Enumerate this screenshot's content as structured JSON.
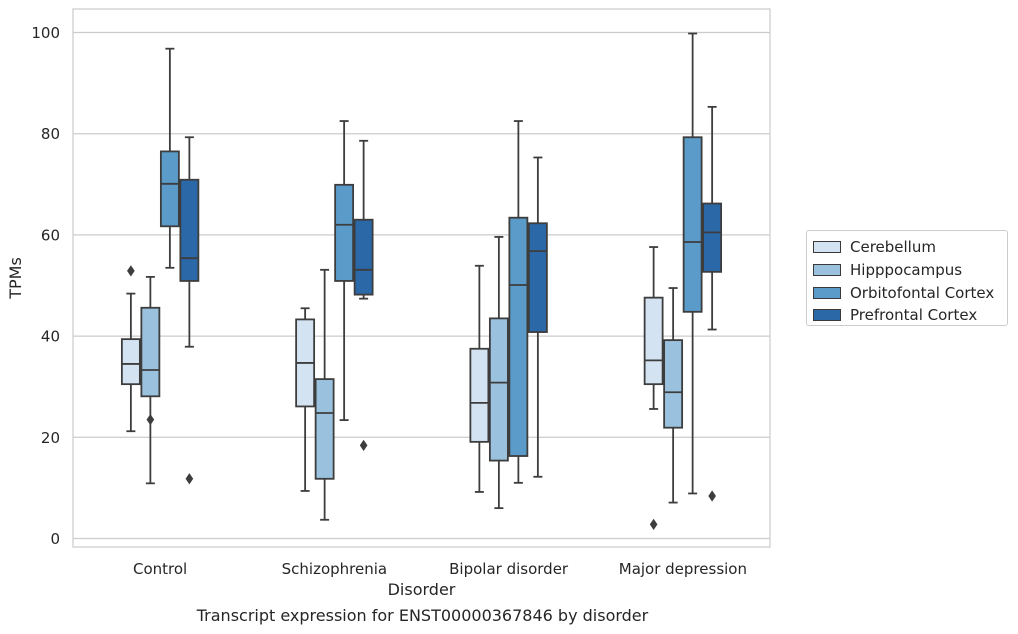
{
  "caption": "Transcript expression for ENST00000367846 by disorder",
  "chart_data": {
    "type": "box",
    "xlabel": "Disorder",
    "ylabel": "TPMs",
    "ylim": [
      -2,
      105
    ],
    "yticks": [
      0,
      20,
      40,
      60,
      80,
      100
    ],
    "grid": true,
    "legend_position": "right",
    "categories": [
      "Control",
      "Schizophrenia",
      "Bipolar disorder",
      "Major depression"
    ],
    "series": [
      {
        "name": "Cerebellum",
        "color": "#d4e3f2",
        "boxes": [
          {
            "whisker_low": 21.2,
            "q1": 30.5,
            "median": 34.5,
            "q3": 39.4,
            "whisker_high": 48.4,
            "outliers": [
              52.9
            ]
          },
          {
            "whisker_low": 9.4,
            "q1": 26.1,
            "median": 34.7,
            "q3": 43.3,
            "whisker_high": 45.5,
            "outliers": []
          },
          {
            "whisker_low": 9.2,
            "q1": 19.1,
            "median": 26.8,
            "q3": 37.5,
            "whisker_high": 53.9,
            "outliers": []
          },
          {
            "whisker_low": 25.6,
            "q1": 30.5,
            "median": 35.2,
            "q3": 47.6,
            "whisker_high": 57.6,
            "outliers": [
              2.8
            ]
          }
        ]
      },
      {
        "name": "Hipppocampus",
        "color": "#9ac2df",
        "boxes": [
          {
            "whisker_low": 10.9,
            "q1": 28.1,
            "median": 33.3,
            "q3": 45.6,
            "whisker_high": 51.7,
            "outliers": [
              23.5
            ]
          },
          {
            "whisker_low": 3.7,
            "q1": 11.8,
            "median": 24.8,
            "q3": 31.5,
            "whisker_high": 53.1,
            "outliers": []
          },
          {
            "whisker_low": 6.0,
            "q1": 15.4,
            "median": 30.8,
            "q3": 43.5,
            "whisker_high": 59.6,
            "outliers": []
          },
          {
            "whisker_low": 7.1,
            "q1": 21.9,
            "median": 28.9,
            "q3": 39.2,
            "whisker_high": 49.5,
            "outliers": []
          }
        ]
      },
      {
        "name": "Orbitofontal Cortex",
        "color": "#5a9bc9",
        "boxes": [
          {
            "whisker_low": 53.5,
            "q1": 61.7,
            "median": 70.1,
            "q3": 76.5,
            "whisker_high": 96.8,
            "outliers": []
          },
          {
            "whisker_low": 23.4,
            "q1": 50.9,
            "median": 62.0,
            "q3": 69.9,
            "whisker_high": 82.5,
            "outliers": []
          },
          {
            "whisker_low": 11.0,
            "q1": 16.3,
            "median": 50.1,
            "q3": 63.4,
            "whisker_high": 82.5,
            "outliers": []
          },
          {
            "whisker_low": 8.9,
            "q1": 44.8,
            "median": 58.6,
            "q3": 79.3,
            "whisker_high": 99.8,
            "outliers": []
          }
        ]
      },
      {
        "name": "Prefrontal Cortex",
        "color": "#2b68a8",
        "boxes": [
          {
            "whisker_low": 37.9,
            "q1": 50.9,
            "median": 55.4,
            "q3": 70.9,
            "whisker_high": 79.3,
            "outliers": [
              11.8
            ]
          },
          {
            "whisker_low": 47.4,
            "q1": 48.2,
            "median": 53.1,
            "q3": 63.0,
            "whisker_high": 78.6,
            "outliers": [
              18.4
            ]
          },
          {
            "whisker_low": 12.2,
            "q1": 40.8,
            "median": 56.8,
            "q3": 62.3,
            "whisker_high": 75.3,
            "outliers": []
          },
          {
            "whisker_low": 41.3,
            "q1": 52.7,
            "median": 60.5,
            "q3": 66.2,
            "whisker_high": 85.3,
            "outliers": [
              8.4
            ]
          }
        ]
      }
    ]
  }
}
